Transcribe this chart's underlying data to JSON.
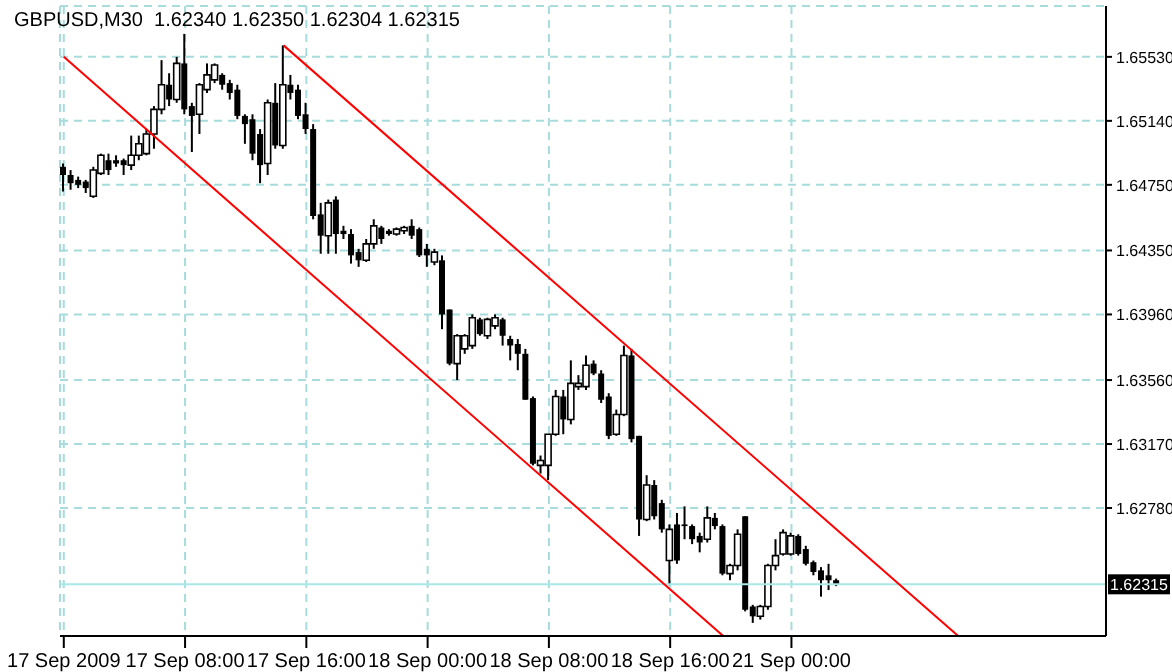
{
  "chart_data": {
    "type": "candlestick",
    "title": "GBPUSD,M30  1.62340 1.62350 1.62304 1.62315",
    "color": "#000000",
    "categories": [
      "17 Sep 2009",
      null,
      null,
      null,
      null,
      null,
      null,
      null,
      null,
      null,
      null,
      null,
      null,
      null,
      null,
      null,
      "17 Sep 08:00",
      null,
      null,
      null,
      null,
      null,
      null,
      null,
      null,
      null,
      null,
      null,
      null,
      null,
      null,
      null,
      "17 Sep 16:00",
      null,
      null,
      null,
      null,
      null,
      null,
      null,
      null,
      null,
      null,
      null,
      null,
      null,
      null,
      null,
      "18 Sep 00:00",
      null,
      null,
      null,
      null,
      null,
      null,
      null,
      null,
      null,
      null,
      null,
      null,
      null,
      null,
      null,
      "18 Sep 08:00",
      null,
      null,
      null,
      null,
      null,
      null,
      null,
      null,
      null,
      null,
      null,
      null,
      null,
      null,
      null,
      "18 Sep 16:00",
      null,
      null,
      null,
      null,
      null,
      null,
      null,
      null,
      null,
      null,
      null,
      null,
      null,
      null,
      null,
      "21 Sep 00:00",
      null,
      null,
      null,
      null,
      null,
      null,
      null,
      null,
      null,
      null,
      null,
      null,
      null,
      null,
      null,
      null,
      null,
      null,
      null,
      null,
      null,
      null,
      null,
      null,
      null,
      null,
      null,
      null,
      null,
      null,
      null,
      null,
      null,
      null,
      null,
      null,
      null,
      null,
      null,
      null,
      null
    ],
    "ohlc": [
      [
        1.6486,
        1.6488,
        1.6471,
        1.6481
      ],
      [
        1.6481,
        1.6484,
        1.6472,
        1.6476
      ],
      [
        1.6478,
        1.648,
        1.6473,
        1.6475
      ],
      [
        1.6477,
        1.6478,
        1.647,
        1.6473
      ],
      [
        1.6468,
        1.6486,
        1.6467,
        1.6484
      ],
      [
        1.6482,
        1.6494,
        1.6481,
        1.6493
      ],
      [
        1.649,
        1.6494,
        1.6481,
        1.6484
      ],
      [
        1.649,
        1.6493,
        1.6486,
        1.6488
      ],
      [
        1.649,
        1.6491,
        1.6481,
        1.6487
      ],
      [
        1.6487,
        1.6505,
        1.6484,
        1.6493
      ],
      [
        1.6493,
        1.6505,
        1.649,
        1.65
      ],
      [
        1.6494,
        1.6509,
        1.6493,
        1.6506
      ],
      [
        1.6506,
        1.6523,
        1.6497,
        1.6521
      ],
      [
        1.6521,
        1.6551,
        1.6518,
        1.6536
      ],
      [
        1.6536,
        1.6543,
        1.6523,
        1.6527
      ],
      [
        1.6527,
        1.6553,
        1.6525,
        1.6549
      ],
      [
        1.6549,
        1.6567,
        1.6518,
        1.6521
      ],
      [
        1.6523,
        1.6525,
        1.6495,
        1.6517
      ],
      [
        1.6518,
        1.6537,
        1.6506,
        1.6536
      ],
      [
        1.6533,
        1.6549,
        1.6531,
        1.6542
      ],
      [
        1.6539,
        1.6549,
        1.6537,
        1.6548
      ],
      [
        1.6542,
        1.6543,
        1.6533,
        1.6536
      ],
      [
        1.6537,
        1.6539,
        1.6527,
        1.6531
      ],
      [
        1.6533,
        1.6536,
        1.6515,
        1.6517
      ],
      [
        1.6517,
        1.6518,
        1.65,
        1.6512
      ],
      [
        1.6515,
        1.6518,
        1.649,
        1.6494
      ],
      [
        1.6506,
        1.6509,
        1.6476,
        1.6487
      ],
      [
        1.6488,
        1.6527,
        1.6481,
        1.6525
      ],
      [
        1.6525,
        1.6537,
        1.6497,
        1.6499
      ],
      [
        1.6499,
        1.656,
        1.6497,
        1.6536
      ],
      [
        1.6536,
        1.6542,
        1.6527,
        1.6531
      ],
      [
        1.6533,
        1.6536,
        1.6515,
        1.6517
      ],
      [
        1.6518,
        1.6525,
        1.6506,
        1.6509
      ],
      [
        1.6509,
        1.6512,
        1.6454,
        1.6456
      ],
      [
        1.6457,
        1.6464,
        1.6433,
        1.6444
      ],
      [
        1.6444,
        1.6466,
        1.6433,
        1.6464
      ],
      [
        1.6466,
        1.6468,
        1.6433,
        1.6445
      ],
      [
        1.6447,
        1.645,
        1.6442,
        1.6445
      ],
      [
        1.6445,
        1.6448,
        1.6427,
        1.6432
      ],
      [
        1.6434,
        1.6436,
        1.6425,
        1.6429
      ],
      [
        1.6429,
        1.6442,
        1.6428,
        1.6439
      ],
      [
        1.6439,
        1.6454,
        1.6436,
        1.645
      ],
      [
        1.6449,
        1.645,
        1.6439,
        1.6442
      ],
      [
        1.6447,
        1.6448,
        1.6444,
        1.6445
      ],
      [
        1.6445,
        1.6449,
        1.6444,
        1.6448
      ],
      [
        1.6447,
        1.645,
        1.6445,
        1.6449
      ],
      [
        1.645,
        1.6454,
        1.6442,
        1.6444
      ],
      [
        1.6448,
        1.6449,
        1.6431,
        1.6432
      ],
      [
        1.6436,
        1.6439,
        1.6425,
        1.6432
      ],
      [
        1.6428,
        1.6436,
        1.6426,
        1.6434
      ],
      [
        1.6429,
        1.6432,
        1.6387,
        1.6396
      ],
      [
        1.6399,
        1.6399,
        1.6365,
        1.6366
      ],
      [
        1.6366,
        1.6384,
        1.6356,
        1.6383
      ],
      [
        1.6375,
        1.6384,
        1.6372,
        1.6383
      ],
      [
        1.6377,
        1.6396,
        1.6375,
        1.6394
      ],
      [
        1.6393,
        1.6394,
        1.6383,
        1.6384
      ],
      [
        1.6383,
        1.6394,
        1.6381,
        1.6393
      ],
      [
        1.6389,
        1.6396,
        1.6387,
        1.6394
      ],
      [
        1.6393,
        1.6394,
        1.6377,
        1.6383
      ],
      [
        1.6381,
        1.6383,
        1.6368,
        1.6377
      ],
      [
        1.6378,
        1.6381,
        1.6362,
        1.6372
      ],
      [
        1.6372,
        1.6375,
        1.6344,
        1.6344
      ],
      [
        1.6345,
        1.6346,
        1.6304,
        1.6305
      ],
      [
        1.6304,
        1.631,
        1.6299,
        1.6307
      ],
      [
        1.6304,
        1.6323,
        1.6295,
        1.6323
      ],
      [
        1.6323,
        1.635,
        1.6322,
        1.6346
      ],
      [
        1.6346,
        1.635,
        1.6323,
        1.6332
      ],
      [
        1.6332,
        1.6368,
        1.6329,
        1.6354
      ],
      [
        1.6352,
        1.6359,
        1.635,
        1.6354
      ],
      [
        1.6352,
        1.6371,
        1.635,
        1.6365
      ],
      [
        1.6366,
        1.6368,
        1.6359,
        1.636
      ],
      [
        1.636,
        1.6362,
        1.6342,
        1.6344
      ],
      [
        1.6346,
        1.6348,
        1.632,
        1.6322
      ],
      [
        1.6323,
        1.6338,
        1.6322,
        1.6335
      ],
      [
        1.6335,
        1.6377,
        1.6334,
        1.6371
      ],
      [
        1.6371,
        1.6375,
        1.6318,
        1.632
      ],
      [
        1.6322,
        1.6322,
        1.6261,
        1.6271
      ],
      [
        1.6271,
        1.6298,
        1.627,
        1.6292
      ],
      [
        1.6292,
        1.6295,
        1.6271,
        1.6273
      ],
      [
        1.6281,
        1.6283,
        1.6263,
        1.6265
      ],
      [
        1.6246,
        1.6268,
        1.6231,
        1.6265
      ],
      [
        1.6268,
        1.6275,
        1.6244,
        1.6246
      ],
      [
        1.6268,
        1.6279,
        1.6259,
        1.6267
      ],
      [
        1.6267,
        1.6268,
        1.6256,
        1.6259
      ],
      [
        1.6261,
        1.6263,
        1.6251,
        1.6257
      ],
      [
        1.6259,
        1.6279,
        1.6257,
        1.6272
      ],
      [
        1.6272,
        1.6275,
        1.6265,
        1.6267
      ],
      [
        1.6267,
        1.6268,
        1.6237,
        1.6238
      ],
      [
        1.6238,
        1.6244,
        1.6234,
        1.6243
      ],
      [
        1.6243,
        1.6265,
        1.624,
        1.6262
      ],
      [
        1.6273,
        1.6273,
        1.6215,
        1.6216
      ],
      [
        1.6218,
        1.6219,
        1.6208,
        1.6212
      ],
      [
        1.6212,
        1.6219,
        1.621,
        1.6218
      ],
      [
        1.6218,
        1.6244,
        1.6216,
        1.6243
      ],
      [
        1.6243,
        1.6259,
        1.624,
        1.6249
      ],
      [
        1.625,
        1.6265,
        1.6249,
        1.6263
      ],
      [
        1.625,
        1.6263,
        1.6249,
        1.6261
      ],
      [
        1.6261,
        1.6262,
        1.6249,
        1.625
      ],
      [
        1.6253,
        1.6255,
        1.6243,
        1.6244
      ],
      [
        1.6245,
        1.6246,
        1.6237,
        1.6239
      ],
      [
        1.624,
        1.6242,
        1.6224,
        1.6234
      ],
      [
        1.6237,
        1.6244,
        1.6228,
        1.6234
      ],
      [
        1.6234,
        1.6235,
        1.62304,
        1.62315
      ],
      null,
      null,
      null,
      null,
      null,
      null,
      null,
      null,
      null,
      null,
      null,
      null,
      null,
      null,
      null,
      null,
      null,
      null,
      null,
      null,
      null,
      null,
      null,
      null,
      null,
      null,
      null,
      null,
      null,
      null,
      null,
      null,
      null,
      null,
      null
    ],
    "series": [
      {
        "type": "line",
        "color": "#ff0000",
        "values": [
          null,
          null,
          null,
          null,
          null,
          null,
          null,
          null,
          null,
          null,
          null,
          null,
          null,
          null,
          null,
          null,
          null,
          null,
          null,
          null,
          null,
          null,
          null,
          null,
          null,
          null,
          null,
          null,
          null,
          1.656,
          null,
          null,
          null,
          null,
          null,
          null,
          null,
          null,
          null,
          null,
          null,
          null,
          null,
          null,
          null,
          null,
          null,
          null,
          null,
          null,
          null,
          null,
          null,
          null,
          null,
          null,
          null,
          null,
          null,
          null,
          null,
          null,
          null,
          null,
          null,
          null,
          null,
          null,
          null,
          null,
          null,
          null,
          null,
          null,
          null,
          null,
          null,
          null,
          null,
          null,
          null,
          null,
          null,
          null,
          null,
          null,
          null,
          null,
          null,
          null,
          null,
          null,
          null,
          null,
          null,
          null,
          null,
          null,
          null,
          null,
          null,
          null,
          null,
          null,
          null,
          null,
          null,
          null,
          null,
          null,
          null,
          null,
          null,
          null,
          null,
          null,
          null,
          null,
          1.62,
          null,
          null,
          null,
          null,
          null,
          null,
          null,
          null,
          null,
          null,
          null,
          null,
          null,
          null,
          null,
          null,
          null,
          null,
          null
        ]
      },
      {
        "type": "line",
        "color": "#ff0000",
        "values": [
          1.6553,
          null,
          null,
          null,
          null,
          null,
          null,
          null,
          null,
          null,
          null,
          null,
          null,
          null,
          null,
          null,
          null,
          null,
          null,
          null,
          null,
          null,
          null,
          null,
          null,
          null,
          null,
          null,
          null,
          null,
          null,
          null,
          null,
          null,
          null,
          null,
          null,
          null,
          null,
          null,
          null,
          null,
          null,
          null,
          null,
          null,
          null,
          null,
          null,
          null,
          null,
          null,
          null,
          null,
          null,
          null,
          null,
          null,
          null,
          null,
          null,
          null,
          null,
          null,
          null,
          null,
          null,
          null,
          null,
          null,
          null,
          null,
          null,
          null,
          null,
          null,
          null,
          null,
          null,
          null,
          null,
          null,
          null,
          null,
          null,
          null,
          null,
          1.62,
          null,
          null,
          null,
          null,
          null,
          null,
          null,
          null,
          null,
          null,
          null,
          null,
          null,
          null,
          null,
          null,
          null,
          null,
          null,
          null,
          null,
          null,
          null,
          null,
          null,
          null,
          null,
          null,
          null,
          null,
          null,
          null,
          null,
          null,
          null,
          null,
          null,
          null,
          null,
          null,
          null,
          null,
          null,
          null,
          null,
          null,
          null,
          null,
          null,
          null
        ]
      }
    ],
    "ylim": [
      1.62,
      1.6584
    ],
    "yticks": [
      {
        "value": 1.6553,
        "label": "1.65530"
      },
      {
        "value": 1.6514,
        "label": "1.65140"
      },
      {
        "value": 1.6475,
        "label": "1.64750"
      },
      {
        "value": 1.6435,
        "label": "1.64350"
      },
      {
        "value": 1.6396,
        "label": "1.63960"
      },
      {
        "value": 1.6356,
        "label": "1.63560"
      },
      {
        "value": 1.6317,
        "label": "1.63170"
      },
      {
        "value": 1.6278,
        "label": "1.62780"
      }
    ],
    "ref_lines": [
      {
        "axis": "y",
        "value": 1.62315,
        "label": "1.62315",
        "color": "#a8e8e8"
      }
    ],
    "grid": true
  }
}
